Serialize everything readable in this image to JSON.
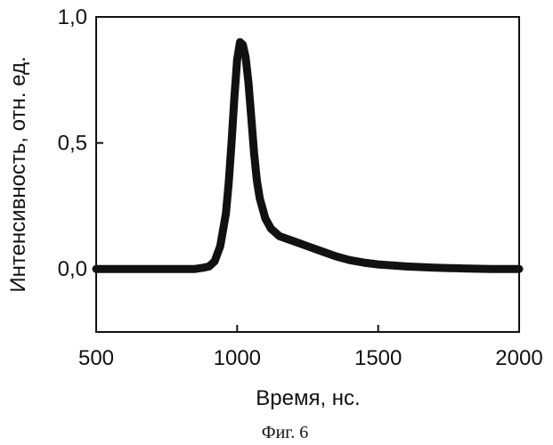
{
  "chart_data": {
    "type": "line",
    "title": "",
    "xlabel": "Время, нс.",
    "ylabel": "Интенсивность, отн. ед.",
    "xlim": [
      500,
      2000
    ],
    "ylim": [
      -0.25,
      1.0
    ],
    "x_ticks": [
      500,
      1000,
      1500,
      2000
    ],
    "x_tick_labels": [
      "500",
      "1000",
      "1500",
      "2000"
    ],
    "y_ticks": [
      0.0,
      0.5,
      1.0
    ],
    "y_tick_labels": [
      "0,0",
      "0,5",
      "1,0"
    ],
    "grid": false,
    "legend": "none",
    "line_color": "#111111",
    "series": [
      {
        "x": [
          500,
          600,
          700,
          800,
          850,
          880,
          900,
          920,
          940,
          960,
          970,
          980,
          990,
          1000,
          1010,
          1020,
          1030,
          1040,
          1050,
          1060,
          1070,
          1080,
          1100,
          1120,
          1150,
          1200,
          1250,
          1300,
          1350,
          1400,
          1450,
          1500,
          1600,
          1700,
          1800,
          1900,
          2000
        ],
        "y": [
          0.0,
          0.0,
          0.0,
          0.0,
          0.0,
          0.005,
          0.01,
          0.03,
          0.09,
          0.22,
          0.34,
          0.5,
          0.68,
          0.83,
          0.9,
          0.89,
          0.84,
          0.74,
          0.6,
          0.46,
          0.35,
          0.28,
          0.2,
          0.16,
          0.13,
          0.11,
          0.09,
          0.07,
          0.05,
          0.035,
          0.025,
          0.018,
          0.01,
          0.005,
          0.002,
          0.0,
          0.0
        ]
      }
    ]
  },
  "caption": "Фиг. 6"
}
